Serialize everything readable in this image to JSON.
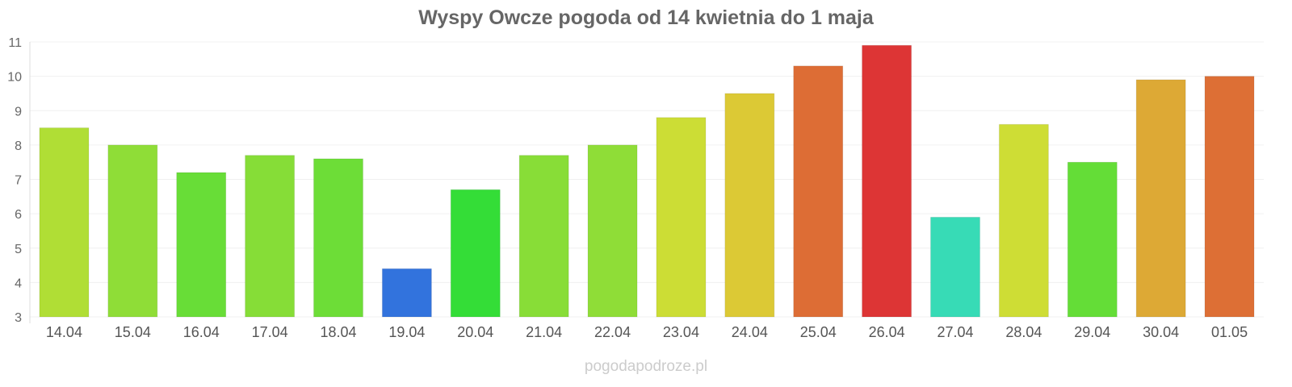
{
  "chart_data": {
    "type": "bar",
    "title": "Wyspy Owcze pogoda od 14 kwietnia do 1 maja",
    "xlabel": "",
    "ylabel": "",
    "ylim": [
      3,
      11
    ],
    "yticks": [
      "3",
      "4",
      "5",
      "6",
      "7",
      "8",
      "9",
      "10",
      "11"
    ],
    "grid": true,
    "categories": [
      "14.04",
      "15.04",
      "16.04",
      "17.04",
      "18.04",
      "19.04",
      "20.04",
      "21.04",
      "22.04",
      "23.04",
      "24.04",
      "25.04",
      "26.04",
      "27.04",
      "28.04",
      "29.04",
      "30.04",
      "01.05"
    ],
    "values": [
      8.5,
      8.0,
      7.2,
      7.7,
      7.6,
      4.4,
      6.7,
      7.7,
      8.0,
      8.8,
      9.5,
      10.3,
      10.9,
      5.9,
      8.6,
      7.5,
      9.9,
      10.0
    ],
    "colors": [
      "#b0de35",
      "#8fdd37",
      "#68dd37",
      "#86dd37",
      "#6ddd37",
      "#3273dd",
      "#34dd37",
      "#88dd37",
      "#8fdd37",
      "#ccdd35",
      "#dcc935",
      "#dd6d35",
      "#dd3535",
      "#37dbb6",
      "#cedd35",
      "#64dd37",
      "#dda935",
      "#dd6f35"
    ]
  },
  "watermark": "pogodapodroze.pl"
}
